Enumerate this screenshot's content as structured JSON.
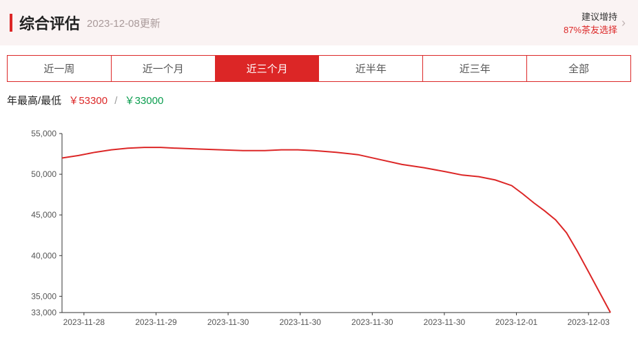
{
  "header": {
    "title": "综合评估",
    "update_text": "2023-12-08更新",
    "recommend_line1": "建议增持",
    "recommend_line2": "87%茶友选择"
  },
  "tabs": {
    "items": [
      "近一周",
      "近一个月",
      "近三个月",
      "近半年",
      "近三年",
      "全部"
    ],
    "active_index": 2
  },
  "high_low": {
    "label": "年最高/最低",
    "high_prefix": "￥",
    "high_value": "53300",
    "low_prefix": "￥",
    "low_value": "33000",
    "separator": "/"
  },
  "chart": {
    "type": "line",
    "ylim": [
      33000,
      55000
    ],
    "yticks": [
      33000,
      35000,
      40000,
      45000,
      50000,
      55000
    ],
    "ytick_labels": [
      "33,000",
      "35,000",
      "40,000",
      "45,000",
      "50,000",
      "55,000"
    ],
    "xtick_labels": [
      "2023-11-28",
      "2023-11-29",
      "2023-11-30",
      "2023-11-30",
      "2023-11-30",
      "2023-11-30",
      "2023-12-01",
      "2023-12-03"
    ],
    "line_color": "#dc2626",
    "line_width": 2,
    "data": [
      [
        0.0,
        52000
      ],
      [
        0.03,
        52300
      ],
      [
        0.06,
        52700
      ],
      [
        0.09,
        53000
      ],
      [
        0.12,
        53200
      ],
      [
        0.15,
        53300
      ],
      [
        0.18,
        53300
      ],
      [
        0.21,
        53200
      ],
      [
        0.25,
        53100
      ],
      [
        0.29,
        53000
      ],
      [
        0.33,
        52900
      ],
      [
        0.37,
        52900
      ],
      [
        0.4,
        53000
      ],
      [
        0.43,
        53000
      ],
      [
        0.46,
        52900
      ],
      [
        0.5,
        52700
      ],
      [
        0.54,
        52400
      ],
      [
        0.58,
        51800
      ],
      [
        0.62,
        51200
      ],
      [
        0.66,
        50800
      ],
      [
        0.7,
        50300
      ],
      [
        0.73,
        49900
      ],
      [
        0.76,
        49700
      ],
      [
        0.79,
        49300
      ],
      [
        0.82,
        48600
      ],
      [
        0.84,
        47600
      ],
      [
        0.86,
        46500
      ],
      [
        0.88,
        45500
      ],
      [
        0.9,
        44400
      ],
      [
        0.92,
        42800
      ],
      [
        0.94,
        40500
      ],
      [
        0.96,
        38000
      ],
      [
        0.98,
        35500
      ],
      [
        1.0,
        33000
      ]
    ],
    "axis_color": "#333333",
    "tick_fontsize": 12,
    "background": "#ffffff"
  },
  "colors": {
    "accent": "#dc2626",
    "green": "#0a9d4e",
    "header_bg": "#faf3f3"
  }
}
